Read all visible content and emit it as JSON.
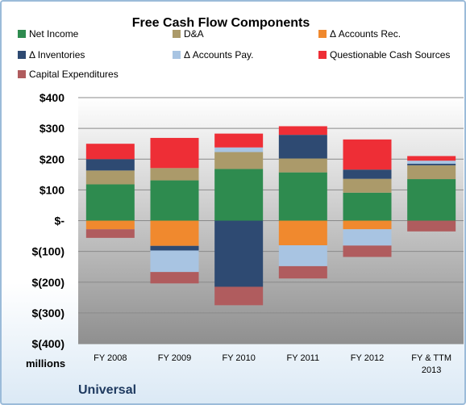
{
  "chart_data": {
    "type": "bar",
    "stacked": true,
    "title": "Free Cash Flow Components",
    "unit_label": "millions",
    "company": "Universal",
    "categories": [
      "FY 2008",
      "FY 2009",
      "FY 2010",
      "FY 2011",
      "FY 2012",
      "FY & TTM 2013"
    ],
    "ylim": [
      -400,
      400
    ],
    "yticks": [
      {
        "value": 400,
        "label": "$400"
      },
      {
        "value": 300,
        "label": "$300"
      },
      {
        "value": 200,
        "label": "$200"
      },
      {
        "value": 100,
        "label": "$100"
      },
      {
        "value": 0,
        "label": "$-"
      },
      {
        "value": -100,
        "label": "$(100)"
      },
      {
        "value": -200,
        "label": "$(200)"
      },
      {
        "value": -300,
        "label": "$(300)"
      },
      {
        "value": -400,
        "label": "$(400)"
      }
    ],
    "grid": true,
    "legend_position": "top",
    "series": [
      {
        "name": "Net Income",
        "color": "#2e8b4f",
        "values": [
          118,
          131,
          168,
          157,
          91,
          135
        ]
      },
      {
        "name": "D&A",
        "color": "#ab9a6a",
        "values": [
          45,
          40,
          55,
          45,
          45,
          45
        ]
      },
      {
        "name": "Δ Accounts Rec.",
        "color": "#f0892e",
        "values": [
          -28,
          -82,
          0,
          -80,
          -28,
          0
        ]
      },
      {
        "name": "Δ Inventories",
        "color": "#2e4a72",
        "values": [
          37,
          -15,
          -215,
          77,
          30,
          5
        ]
      },
      {
        "name": "Δ Accounts Pay.",
        "color": "#a8c4e2",
        "values": [
          0,
          -70,
          15,
          -68,
          -53,
          10
        ]
      },
      {
        "name": "Questionable Cash Sources",
        "color": "#ee2e36",
        "values": [
          50,
          98,
          45,
          28,
          98,
          15
        ]
      },
      {
        "name": "Capital Expenditures",
        "color": "#b05c5e",
        "values": [
          -28,
          -37,
          -60,
          -40,
          -37,
          -35
        ]
      }
    ]
  }
}
